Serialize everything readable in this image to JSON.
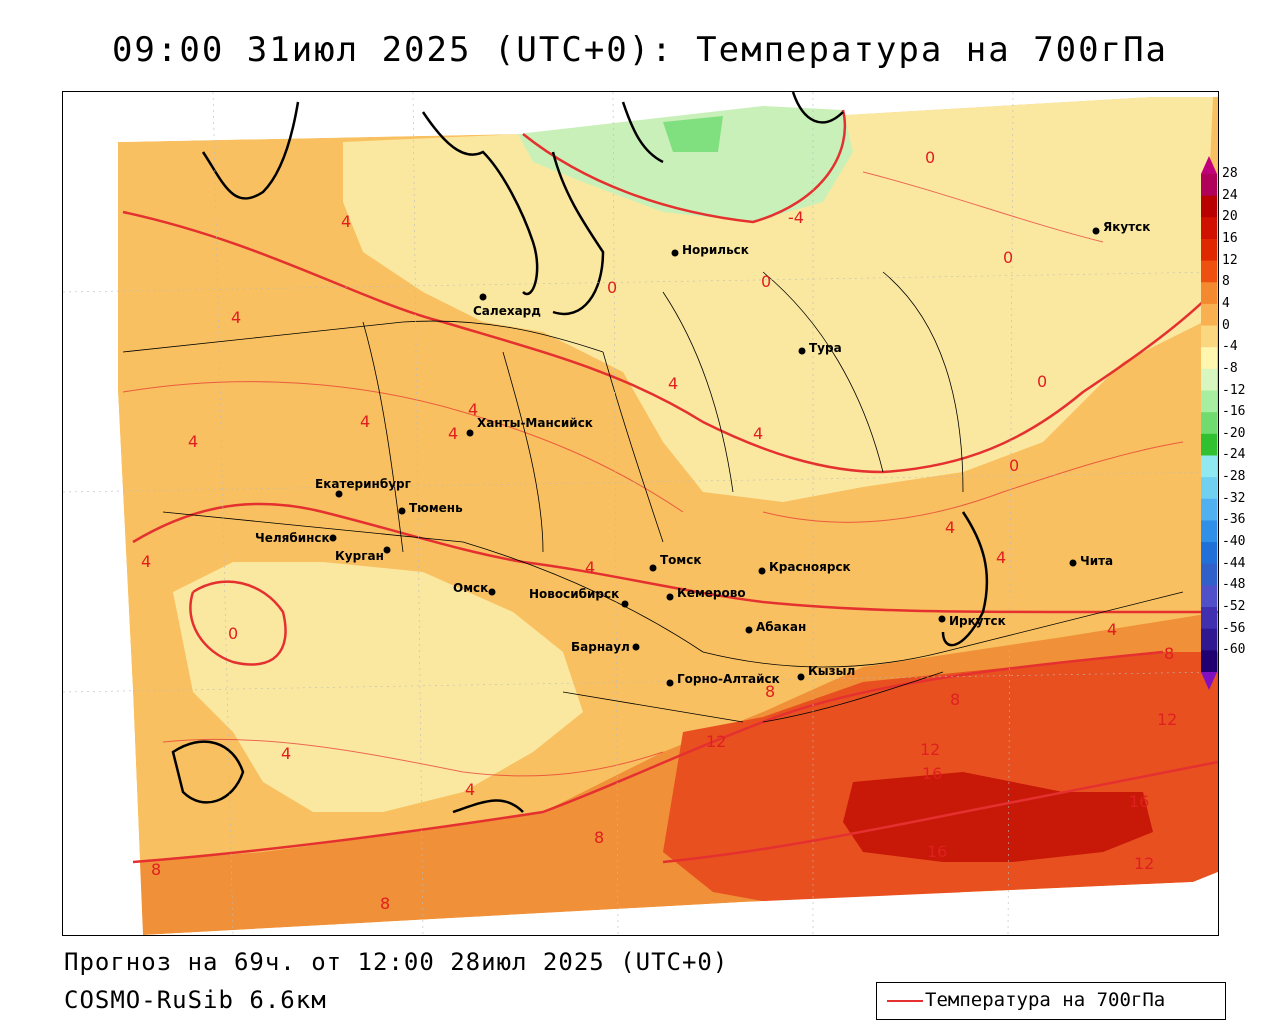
{
  "title": "09:00 31июл 2025 (UTC+0): Температура на 700гПа",
  "footer": {
    "forecast": "Прогноз на 69ч. от 12:00 28июл 2025 (UTC+0)",
    "model": "COSMO-RuSib 6.6км"
  },
  "legend": {
    "label": "Температура на 700гПа",
    "line_color": "#e53030"
  },
  "colorbar": {
    "ticks": [
      "28",
      "24",
      "20",
      "16",
      "12",
      "8",
      "4",
      "0",
      "-4",
      "-8",
      "-12",
      "-16",
      "-20",
      "-24",
      "-28",
      "-32",
      "-36",
      "-40",
      "-44",
      "-48",
      "-52",
      "-56",
      "-60"
    ],
    "colors": [
      "#b0005a",
      "#b80000",
      "#d01000",
      "#e02800",
      "#ee5010",
      "#f48a30",
      "#f8b050",
      "#fbd880",
      "#fff6b0",
      "#d8f6c0",
      "#a8eea0",
      "#70dc70",
      "#30c030",
      "#90e8f0",
      "#70d0f0",
      "#50b0f0",
      "#3090e8",
      "#2070d8",
      "#3060c8",
      "#5050c8",
      "#4030b0",
      "#301890",
      "#200070"
    ]
  },
  "cities": [
    {
      "name": "Якутск"
    },
    {
      "name": "Норильск"
    },
    {
      "name": "Салехард"
    },
    {
      "name": "Тура"
    },
    {
      "name": "Ханты-Мансийск"
    },
    {
      "name": "Екатеринбург"
    },
    {
      "name": "Тюмень"
    },
    {
      "name": "Челябинск"
    },
    {
      "name": "Курган"
    },
    {
      "name": "Омск"
    },
    {
      "name": "Новосибирск"
    },
    {
      "name": "Томск"
    },
    {
      "name": "Кемерово"
    },
    {
      "name": "Красноярск"
    },
    {
      "name": "Абакан"
    },
    {
      "name": "Барнаул"
    },
    {
      "name": "Горно-Алтайск"
    },
    {
      "name": "Кызыл"
    },
    {
      "name": "Иркутск"
    },
    {
      "name": "Чита"
    }
  ],
  "isoline_labels": [
    "0",
    "-4",
    "4",
    "8",
    "12",
    "16"
  ],
  "colors": {
    "band_0_4": "#fbe8a0",
    "band_4_8": "#f8c060",
    "band_8_12": "#f09038",
    "band_12_16": "#e85020",
    "band_16_20": "#c81808",
    "band_cold": "#c8f0b8",
    "band_cold2": "#80e080",
    "isoline": "#e53030"
  }
}
